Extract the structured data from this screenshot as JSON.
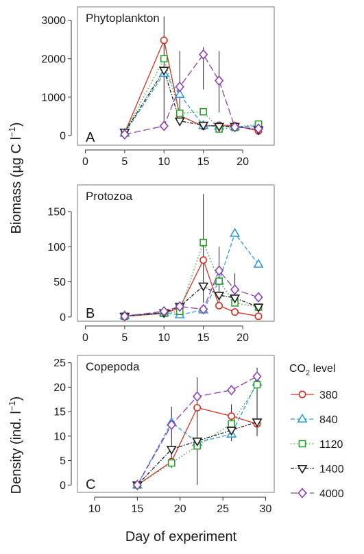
{
  "figure": {
    "ylabel_biomass_main": "Biomass (µg C l",
    "ylabel_biomass_sup": "−1",
    "ylabel_biomass_end": ")",
    "ylabel_density_main": "Density (ind. l",
    "ylabel_density_sup": "−1",
    "ylabel_density_end": ")",
    "xlabel": "Day of experiment"
  },
  "legend": {
    "title_main": "CO",
    "title_sub": "2",
    "title_end": " level",
    "entries": [
      {
        "label": "380",
        "color": "#d62d20",
        "marker": "circle",
        "dash": "solid"
      },
      {
        "label": "840",
        "color": "#2f9bd4",
        "marker": "triangle-up",
        "dash": "dashed"
      },
      {
        "label": "1120",
        "color": "#2aa02a",
        "marker": "square",
        "dash": "dotted"
      },
      {
        "label": "1400",
        "color": "#1a1a1a",
        "marker": "triangle-down",
        "dash": "dashdot"
      },
      {
        "label": "4000",
        "color": "#8b3fb0",
        "marker": "diamond",
        "dash": "longdash"
      }
    ]
  },
  "chart_data": [
    {
      "type": "line",
      "title": "Phytoplankton",
      "panel_letter": "A",
      "xlim": [
        -1,
        24
      ],
      "ylim": [
        -250,
        3350
      ],
      "xticks": [
        0,
        5,
        10,
        15,
        20
      ],
      "yticks": [
        0,
        1000,
        2000,
        3000
      ],
      "series": [
        {
          "name": "380",
          "x": [
            5,
            10,
            12,
            15,
            17,
            19,
            22
          ],
          "y": [
            70,
            2480,
            520,
            240,
            270,
            260,
            120
          ]
        },
        {
          "name": "840",
          "x": [
            5,
            10,
            12,
            15,
            17,
            19,
            22
          ],
          "y": [
            60,
            1620,
            1070,
            260,
            240,
            230,
            250
          ]
        },
        {
          "name": "1120",
          "x": [
            5,
            10,
            12,
            15,
            17,
            19,
            22
          ],
          "y": [
            80,
            2000,
            580,
            620,
            170,
            210,
            300
          ]
        },
        {
          "name": "1400",
          "x": [
            5,
            10,
            12,
            15,
            17,
            19,
            22
          ],
          "y": [
            90,
            1700,
            380,
            270,
            240,
            240,
            150
          ]
        },
        {
          "name": "4000",
          "x": [
            5,
            10,
            12,
            15,
            17,
            19,
            22
          ],
          "y": [
            30,
            250,
            1270,
            2110,
            1430,
            220,
            180
          ]
        }
      ],
      "error_bars": [
        {
          "x": 10,
          "low": 300,
          "high": 3100
        },
        {
          "x": 12,
          "low": 250,
          "high": 2200
        },
        {
          "x": 15,
          "low": 1200,
          "high": 2300
        },
        {
          "x": 17,
          "low": 600,
          "high": 2200
        }
      ]
    },
    {
      "type": "line",
      "title": "Protozoa",
      "panel_letter": "B",
      "xlim": [
        -1,
        24
      ],
      "ylim": [
        -6,
        188
      ],
      "xticks": [
        0,
        5,
        10,
        15,
        20
      ],
      "yticks": [
        0,
        50,
        100,
        150
      ],
      "series": [
        {
          "name": "380",
          "x": [
            5,
            10,
            12,
            15,
            17,
            19,
            22
          ],
          "y": [
            1,
            5,
            13,
            81,
            16,
            7,
            1
          ]
        },
        {
          "name": "840",
          "x": [
            5,
            10,
            12,
            15,
            17,
            19,
            22
          ],
          "y": [
            2,
            6,
            3,
            10,
            51,
            119,
            75
          ]
        },
        {
          "name": "1120",
          "x": [
            5,
            10,
            12,
            15,
            17,
            19,
            22
          ],
          "y": [
            1,
            5,
            8,
            106,
            51,
            20,
            14
          ]
        },
        {
          "name": "1400",
          "x": [
            5,
            10,
            12,
            15,
            17,
            19,
            22
          ],
          "y": [
            1,
            6,
            15,
            44,
            31,
            27,
            14
          ]
        },
        {
          "name": "4000",
          "x": [
            5,
            10,
            12,
            15,
            17,
            19,
            22
          ],
          "y": [
            1,
            8,
            15,
            11,
            66,
            39,
            28
          ]
        }
      ],
      "error_bars": [
        {
          "x": 15,
          "low": 20,
          "high": 175
        },
        {
          "x": 17,
          "low": 15,
          "high": 100
        },
        {
          "x": 19,
          "low": 15,
          "high": 62
        }
      ]
    },
    {
      "type": "line",
      "title": "Copepoda",
      "panel_letter": "C",
      "xlim": [
        8,
        31
      ],
      "ylim": [
        -1.5,
        26.5
      ],
      "xticks": [
        10,
        15,
        20,
        25,
        30
      ],
      "yticks": [
        0,
        5,
        10,
        15,
        20,
        25
      ],
      "series": [
        {
          "name": "380",
          "x": [
            15,
            19,
            22,
            26,
            29
          ],
          "y": [
            0,
            4.8,
            15.8,
            14.1,
            12.5
          ]
        },
        {
          "name": "840",
          "x": [
            15,
            19,
            22,
            26,
            29
          ],
          "y": [
            0,
            12.8,
            8.7,
            10.4,
            21.0
          ]
        },
        {
          "name": "1120",
          "x": [
            15,
            19,
            22,
            26,
            29
          ],
          "y": [
            0,
            4.5,
            8.0,
            12.5,
            20.5
          ]
        },
        {
          "name": "1400",
          "x": [
            15,
            19,
            22,
            26,
            29
          ],
          "y": [
            0,
            7.3,
            9.0,
            11.2,
            12.9
          ]
        },
        {
          "name": "4000",
          "x": [
            15,
            19,
            22,
            26,
            29
          ],
          "y": [
            0,
            12.3,
            18.1,
            19.4,
            22.2
          ]
        }
      ],
      "error_bars": [
        {
          "x": 19,
          "low": 3.5,
          "high": 16
        },
        {
          "x": 22,
          "low": 0,
          "high": 22
        },
        {
          "x": 26,
          "low": 9,
          "high": 16.5
        },
        {
          "x": 29,
          "low": 10,
          "high": 24
        }
      ]
    }
  ]
}
